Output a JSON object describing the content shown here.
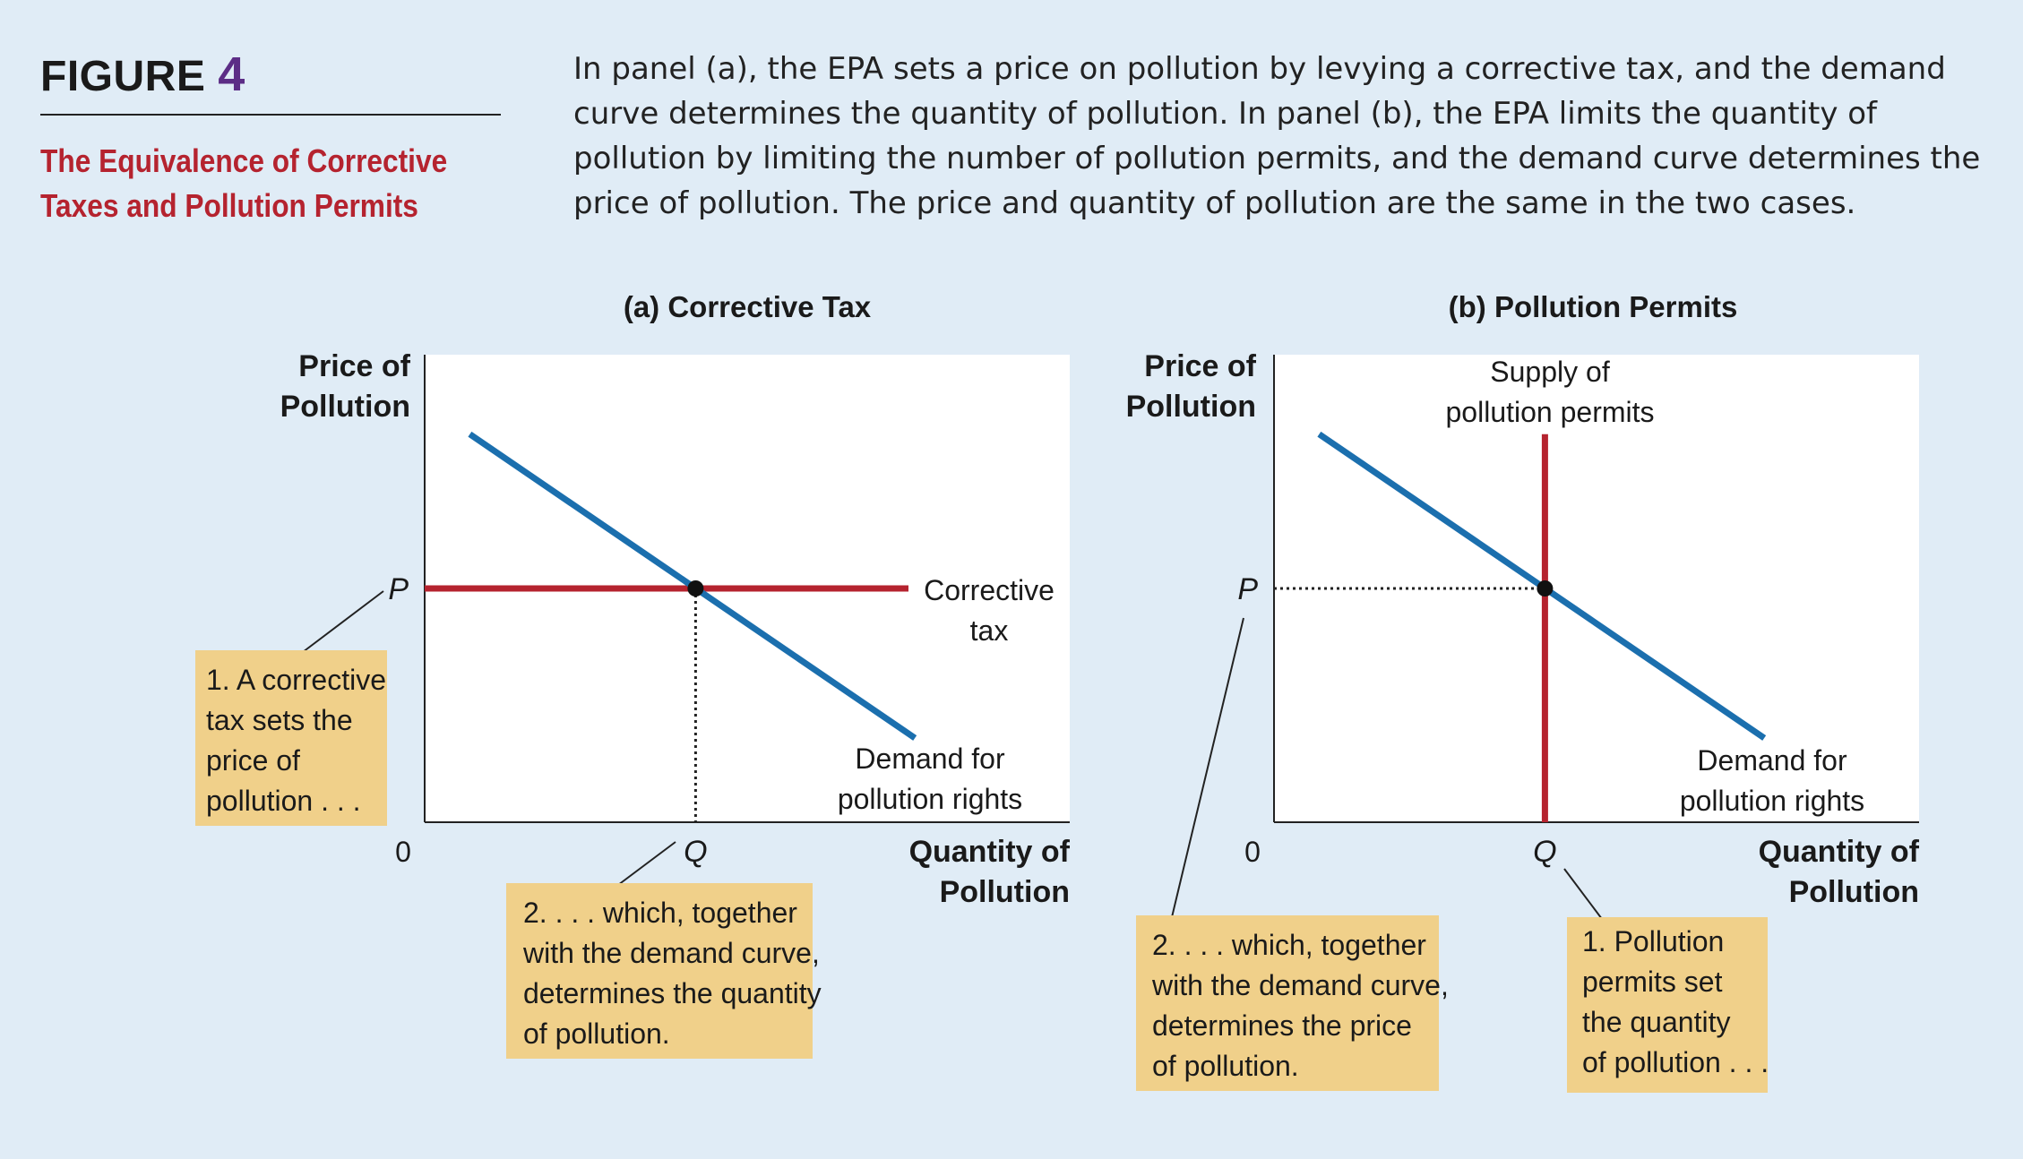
{
  "figure": {
    "label": "FIGURE",
    "number": "4",
    "title_lines": [
      "The Equivalence of Corrective",
      "Taxes and Pollution Permits"
    ],
    "caption_lines": [
      "In panel (a), the EPA sets a price on pollution by levying a corrective tax, and the demand",
      "curve determines the quantity of pollution. In panel (b), the EPA limits the quantity of",
      "pollution by limiting the number of pollution permits, and the demand curve determines the",
      "price of pollution. The price and quantity of pollution are the same in the two cases."
    ]
  },
  "colors": {
    "background": "#e0ecf6",
    "demand": "#1b6fae",
    "policy": "#b5232f",
    "callout": "#f0d08a",
    "title": "#b5232f",
    "figure_number": "#5c2d86"
  },
  "chart_data": [
    {
      "type": "line",
      "panel_title": "(a) Corrective Tax",
      "ylabel_lines": [
        "Price of",
        "Pollution"
      ],
      "xlabel_lines": [
        "Quantity of",
        "Pollution"
      ],
      "origin_label": "0",
      "xlim": [
        0,
        10
      ],
      "ylim": [
        0,
        10
      ],
      "grid": false,
      "tick_labels": {
        "x": "Q",
        "y": "P"
      },
      "equilibrium": {
        "x": 4.2,
        "y": 5
      },
      "series": [
        {
          "name": "Demand for pollution rights",
          "label_lines": [
            "Demand for",
            "pollution rights"
          ],
          "color": "#1b6fae",
          "x": [
            0.7,
            7.6
          ],
          "y": [
            8.3,
            1.8
          ]
        },
        {
          "name": "Corrective tax",
          "label_lines": [
            "Corrective",
            "tax"
          ],
          "color": "#b5232f",
          "x": [
            0,
            7.5
          ],
          "y": [
            5,
            5
          ]
        }
      ],
      "guides": [
        {
          "kind": "vertical-dotted",
          "x": 4.2,
          "from_y": 0,
          "to_y": 5
        }
      ],
      "annotations": [
        {
          "number": "1.",
          "lines": [
            "1.  A corrective",
            "tax sets the",
            "price of",
            "pollution . . ."
          ],
          "points_to": "P"
        },
        {
          "number": "2.",
          "lines": [
            "2.  . . . which, together",
            "with the demand curve,",
            "determines the quantity",
            "of pollution."
          ],
          "points_to": "Q"
        }
      ]
    },
    {
      "type": "line",
      "panel_title": "(b) Pollution Permits",
      "ylabel_lines": [
        "Price of",
        "Pollution"
      ],
      "xlabel_lines": [
        "Quantity of",
        "Pollution"
      ],
      "origin_label": "0",
      "xlim": [
        0,
        10
      ],
      "ylim": [
        0,
        10
      ],
      "grid": false,
      "tick_labels": {
        "x": "Q",
        "y": "P"
      },
      "equilibrium": {
        "x": 4.2,
        "y": 5
      },
      "series": [
        {
          "name": "Demand for pollution rights",
          "label_lines": [
            "Demand for",
            "pollution rights"
          ],
          "color": "#1b6fae",
          "x": [
            0.7,
            7.6
          ],
          "y": [
            8.3,
            1.8
          ]
        },
        {
          "name": "Supply of pollution permits",
          "label_lines": [
            "Supply of",
            "pollution permits"
          ],
          "color": "#b5232f",
          "x": [
            4.2,
            4.2
          ],
          "y": [
            0,
            8.3
          ]
        }
      ],
      "guides": [
        {
          "kind": "horizontal-dotted",
          "y": 5,
          "from_x": 0,
          "to_x": 4.2
        }
      ],
      "annotations": [
        {
          "number": "2.",
          "lines": [
            "2.  . . . which, together",
            "with the demand curve,",
            "determines the price",
            "of pollution."
          ],
          "points_to": "P"
        },
        {
          "number": "1.",
          "lines": [
            "1.  Pollution",
            "permits set",
            "the quantity",
            "of pollution . . ."
          ],
          "points_to": "Q"
        }
      ]
    }
  ]
}
